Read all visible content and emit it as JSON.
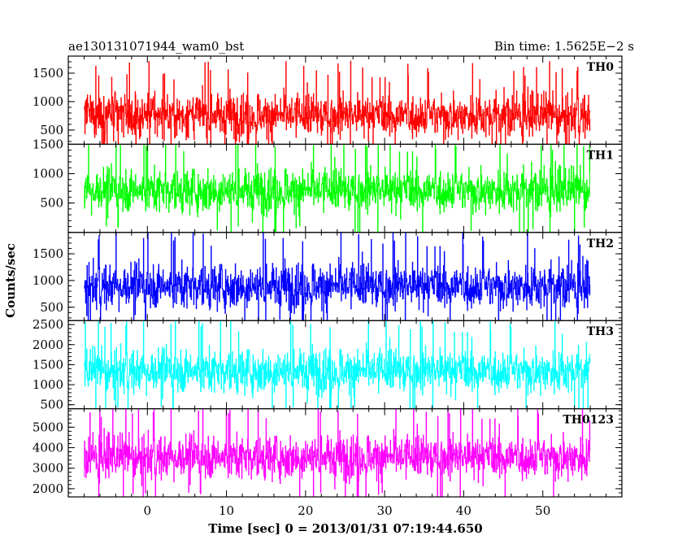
{
  "header": {
    "left": "ae130131071944_wam0_bst",
    "right": "Bin time: 1.5625E−2 s"
  },
  "chart_data": {
    "type": "line",
    "title": "ae130131071944_wam0_bst",
    "subtitle": "Bin time: 1.5625E−2 s",
    "xlabel": "Time [sec] 0 = 2013/01/31 07:19:44.650",
    "ylabel": "Counts/sec",
    "xlim": [
      -10,
      60
    ],
    "data_xrange": [
      -8,
      56
    ],
    "x_ticks": [
      0,
      10,
      20,
      30,
      40,
      50
    ],
    "x_tick_labels": [
      "0",
      "10",
      "20",
      "30",
      "40",
      "50"
    ],
    "grid": false,
    "legend": "none",
    "panels": [
      {
        "name": "TH0",
        "color": "#ff0000",
        "ylim": [
          250,
          1800
        ],
        "y_ticks": [
          500,
          1000,
          1500
        ],
        "y_tick_labels": [
          "500",
          "1000",
          "1500"
        ],
        "mean": 760,
        "low": 290,
        "high": 1760
      },
      {
        "name": "TH1",
        "color": "#00ff00",
        "ylim": [
          0,
          1500
        ],
        "y_ticks": [
          500,
          1000,
          1500
        ],
        "y_tick_labels": [
          "500",
          "1000",
          "1500"
        ],
        "mean": 720,
        "low": 60,
        "high": 1500
      },
      {
        "name": "TH2",
        "color": "#0000ff",
        "ylim": [
          250,
          1900
        ],
        "y_ticks": [
          500,
          1000,
          1500
        ],
        "y_tick_labels": [
          "500",
          "1000",
          "1500"
        ],
        "mean": 900,
        "low": 270,
        "high": 1900
      },
      {
        "name": "TH3",
        "color": "#00ffff",
        "ylim": [
          400,
          2600
        ],
        "y_ticks": [
          500,
          1000,
          1500,
          2000,
          2500
        ],
        "y_tick_labels": [
          "500",
          "1000",
          "1500",
          "2000",
          "2500"
        ],
        "mean": 1350,
        "low": 480,
        "high": 2600
      },
      {
        "name": "TH0123",
        "color": "#ff00ff",
        "ylim": [
          1600,
          5900
        ],
        "y_ticks": [
          2000,
          3000,
          4000,
          5000
        ],
        "y_tick_labels": [
          "2000",
          "3000",
          "4000",
          "5000"
        ],
        "mean": 3550,
        "low": 1700,
        "high": 5800
      }
    ]
  }
}
